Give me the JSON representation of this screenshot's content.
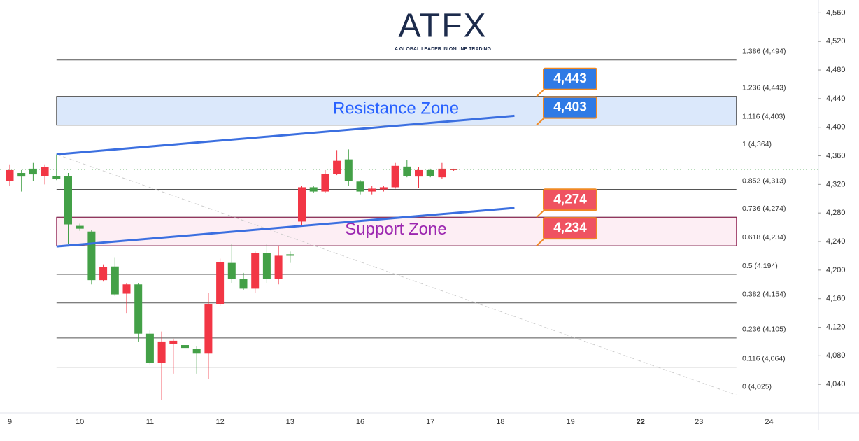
{
  "logo": {
    "name": "ATFX",
    "tagline": "A GLOBAL LEADER IN ONLINE TRADING"
  },
  "chart_data": {
    "type": "candlestick",
    "categories": [
      "9",
      null,
      null,
      null,
      null,
      null,
      "10",
      null,
      null,
      null,
      null,
      null,
      "11",
      null,
      null,
      null,
      null,
      null,
      "12",
      null,
      null,
      null,
      null,
      null,
      "13",
      null,
      null,
      null,
      null,
      null,
      "16",
      null,
      null,
      null,
      null,
      null,
      "17",
      null,
      null,
      null,
      null,
      null,
      "18",
      null,
      null,
      null,
      null,
      null,
      "19",
      null,
      null,
      null,
      null,
      null,
      "22",
      null,
      null,
      null,
      null,
      "23",
      null,
      null,
      null,
      null,
      null,
      "24",
      null,
      null,
      null,
      null
    ],
    "open": [
      4325,
      4336,
      4342,
      4332,
      4332,
      4332,
      4262,
      4254,
      4186,
      4205,
      4167,
      4180,
      4111,
      4070,
      4097,
      4095,
      4090,
      4083,
      4152,
      4210,
      4188,
      4174,
      4224,
      4188,
      4222,
      4268,
      4316,
      4310,
      4335,
      4355,
      4324,
      4310,
      4313,
      4316,
      4345,
      4331,
      4340,
      4330,
      4340,
      null,
      null,
      null,
      null,
      null,
      null,
      null,
      null,
      null,
      null,
      null,
      null,
      null,
      null,
      null,
      null,
      null,
      null,
      null,
      null,
      null,
      null,
      null,
      null,
      null,
      null,
      null,
      null,
      null,
      null,
      null
    ],
    "high": [
      4348,
      4340,
      4350,
      4348,
      4362,
      4336,
      4265,
      4256,
      4208,
      4218,
      4182,
      4182,
      4116,
      4114,
      4104,
      4106,
      4093,
      4168,
      4216,
      4236,
      4196,
      4226,
      4236,
      4234,
      4226,
      4318,
      4318,
      4340,
      4368,
      4369,
      4326,
      4318,
      4318,
      4350,
      4354,
      4344,
      4342,
      4350,
      4342,
      null,
      null,
      null,
      null,
      null,
      null,
      null,
      null,
      null,
      null,
      null,
      null,
      null,
      null,
      null,
      null,
      null,
      null,
      null,
      null,
      null,
      null,
      null,
      null,
      null,
      null,
      null,
      null,
      null,
      null,
      null
    ],
    "low": [
      4318,
      4310,
      4325,
      4320,
      4326,
      4237,
      4255,
      4180,
      4184,
      4164,
      4140,
      4100,
      4068,
      4018,
      4055,
      4082,
      4055,
      4048,
      4150,
      4182,
      4172,
      4168,
      4182,
      4180,
      4210,
      4262,
      4308,
      4308,
      4333,
      4318,
      4306,
      4306,
      4310,
      4314,
      4330,
      4315,
      4330,
      4328,
      4339,
      null,
      null,
      null,
      null,
      null,
      null,
      null,
      null,
      null,
      null,
      null,
      null,
      null,
      null,
      null,
      null,
      null,
      null,
      null,
      null,
      null,
      null,
      null,
      null,
      null,
      null,
      null,
      null,
      null,
      null,
      null
    ],
    "close": [
      4340,
      4331,
      4334,
      4344,
      4328,
      4264,
      4258,
      4186,
      4204,
      4166,
      4180,
      4111,
      4070,
      4100,
      4101,
      4091,
      4083,
      4152,
      4211,
      4188,
      4174,
      4224,
      4188,
      4220,
      4220,
      4316,
      4310,
      4335,
      4353,
      4325,
      4310,
      4314,
      4316,
      4346,
      4332,
      4340,
      4332,
      4342,
      4341,
      null,
      null,
      null,
      null,
      null,
      null,
      null,
      null,
      null,
      null,
      null,
      null,
      null,
      null,
      null,
      null,
      null,
      null,
      null,
      null,
      null,
      null,
      null,
      null,
      null,
      null,
      null,
      null,
      null,
      null,
      null
    ],
    "up_color": "#f23645",
    "down_color": "#43a047",
    "ylim": [
      4000,
      4578
    ],
    "yticks": [
      {
        "value": 4040,
        "label": "4,040"
      },
      {
        "value": 4080,
        "label": "4,080"
      },
      {
        "value": 4120,
        "label": "4,120"
      },
      {
        "value": 4160,
        "label": "4,160"
      },
      {
        "value": 4200,
        "label": "4,200"
      },
      {
        "value": 4240,
        "label": "4,240"
      },
      {
        "value": 4280,
        "label": "4,280"
      },
      {
        "value": 4320,
        "label": "4,320"
      },
      {
        "value": 4360,
        "label": "4,360"
      },
      {
        "value": 4400,
        "label": "4,400"
      },
      {
        "value": 4440,
        "label": "4,440"
      },
      {
        "value": 4480,
        "label": "4,480"
      },
      {
        "value": 4520,
        "label": "4,520"
      },
      {
        "value": 4560,
        "label": "4,560"
      }
    ],
    "fib_span": [
      4,
      62.2
    ],
    "fib_levels": [
      {
        "value": 4494,
        "label": "1.386 (4,494)"
      },
      {
        "value": 4443,
        "label": "1.236 (4,443)"
      },
      {
        "value": 4403,
        "label": "1.116 (4,403)"
      },
      {
        "value": 4364,
        "label": "1 (4,364)"
      },
      {
        "value": 4313,
        "label": "0.852 (4,313)"
      },
      {
        "value": 4274,
        "label": "0.736 (4,274)"
      },
      {
        "value": 4234,
        "label": "0.618 (4,234)"
      },
      {
        "value": 4194,
        "label": "0.5 (4,194)"
      },
      {
        "value": 4154,
        "label": "0.382 (4,154)"
      },
      {
        "value": 4105,
        "label": "0.236 (4,105)"
      },
      {
        "value": 4064,
        "label": "0.116 (4,064)"
      },
      {
        "value": 4025,
        "label": "0 (4,025)"
      }
    ],
    "zones": [
      {
        "name": "Resistance Zone",
        "low": 4403,
        "high": 4443,
        "color": "#2962ff",
        "fill": "#dbe8fb"
      },
      {
        "name": "Support Zone",
        "low": 4234,
        "high": 4274,
        "color": "#9c27b0",
        "fill": "#fdeef4"
      }
    ],
    "callouts": [
      {
        "values": [
          4443
        ],
        "value_labels": [
          "4,443"
        ],
        "color": "#2f7ae5"
      },
      {
        "values": [
          4403
        ],
        "value_labels": [
          "4,403"
        ],
        "color": "#2f7ae5"
      },
      {
        "values": [
          4274
        ],
        "value_labels": [
          "4,274"
        ],
        "color": "#ef5361"
      },
      {
        "values": [
          4234
        ],
        "value_labels": [
          "4,234"
        ],
        "color": "#ef5361"
      }
    ],
    "trendlines": [
      {
        "x": [
          4,
          43.2
        ],
        "values": [
          4362,
          4416
        ],
        "color": "#3b6fe0"
      },
      {
        "x": [
          4,
          43.2
        ],
        "values": [
          4233,
          4287
        ],
        "color": "#3b6fe0"
      }
    ],
    "projection": {
      "x": [
        4,
        62.2
      ],
      "values": [
        4362,
        4025
      ],
      "color": "#cccccc"
    }
  }
}
